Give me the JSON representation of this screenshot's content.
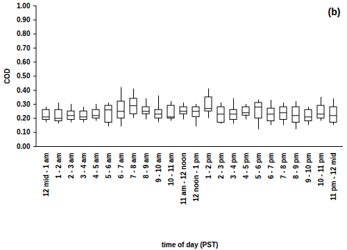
{
  "chart_data": {
    "type": "box",
    "title": "(b)",
    "x_label": "time of day (PST)",
    "y_label": "COD",
    "categories": [
      "12 mid - 1 am",
      "1 - 2 am",
      "2 - 3 am",
      "3 - 4 am",
      "4 - 5 am",
      "5 - 6 am",
      "6 - 7 am",
      "7 - 8 am",
      "8 - 9 am",
      "9 - 10 am",
      "10 - 11 am",
      "11 am - 12 noon",
      "12 noon - 1 pm",
      "1 - 2 pm",
      "2 - 3 pm",
      "3 - 4 pm",
      "4 - 5 pm",
      "5 - 6 pm",
      "6 - 7 pm",
      "7 - 8 pm",
      "8 - 9 pm",
      "9 - 10 pm",
      "10 - 11 pm",
      "11 pm - 12 mid"
    ],
    "whisker_low": [
      0.17,
      0.16,
      0.17,
      0.17,
      0.18,
      0.14,
      0.14,
      0.2,
      0.19,
      0.17,
      0.18,
      0.19,
      0.14,
      0.2,
      0.16,
      0.16,
      0.19,
      0.12,
      0.15,
      0.15,
      0.12,
      0.15,
      0.18,
      0.15
    ],
    "q1": [
      0.19,
      0.18,
      0.19,
      0.19,
      0.2,
      0.17,
      0.2,
      0.23,
      0.23,
      0.2,
      0.2,
      0.23,
      0.21,
      0.25,
      0.17,
      0.19,
      0.22,
      0.2,
      0.18,
      0.19,
      0.17,
      0.18,
      0.2,
      0.17
    ],
    "median": [
      0.21,
      0.2,
      0.22,
      0.21,
      0.22,
      0.26,
      0.25,
      0.29,
      0.25,
      0.23,
      0.21,
      0.25,
      0.25,
      0.27,
      0.23,
      0.23,
      0.24,
      0.28,
      0.23,
      0.24,
      0.22,
      0.21,
      0.23,
      0.22
    ],
    "q3": [
      0.26,
      0.26,
      0.25,
      0.25,
      0.26,
      0.29,
      0.32,
      0.34,
      0.28,
      0.26,
      0.29,
      0.28,
      0.28,
      0.35,
      0.28,
      0.26,
      0.28,
      0.31,
      0.27,
      0.28,
      0.28,
      0.26,
      0.29,
      0.28
    ],
    "whisker_high": [
      0.28,
      0.31,
      0.3,
      0.28,
      0.3,
      0.31,
      0.42,
      0.41,
      0.34,
      0.36,
      0.32,
      0.31,
      0.3,
      0.41,
      0.31,
      0.34,
      0.3,
      0.33,
      0.33,
      0.31,
      0.32,
      0.28,
      0.35,
      0.34
    ],
    "color": "#000000",
    "ylim": [
      0,
      1
    ],
    "yticks": [
      {
        "value": 0,
        "label": "0.00"
      },
      {
        "value": 0.1,
        "label": "0.10"
      },
      {
        "value": 0.2,
        "label": "0.20"
      },
      {
        "value": 0.3,
        "label": "0.30"
      },
      {
        "value": 0.4,
        "label": "0.40"
      },
      {
        "value": 0.5,
        "label": "0.50"
      },
      {
        "value": 0.6,
        "label": "0.60"
      },
      {
        "value": 0.7,
        "label": "0.70"
      },
      {
        "value": 0.8,
        "label": "0.80"
      },
      {
        "value": 0.9,
        "label": "0.90"
      },
      {
        "value": 1,
        "label": "1.00"
      }
    ],
    "grid": false
  }
}
